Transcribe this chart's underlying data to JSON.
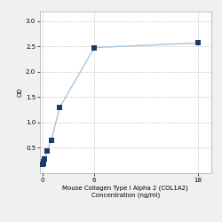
{
  "x_values": [
    0,
    0.0625,
    0.125,
    0.25,
    0.5,
    1,
    2,
    6,
    18
  ],
  "y_values": [
    0.17,
    0.19,
    0.22,
    0.28,
    0.43,
    0.65,
    1.3,
    2.48,
    2.57
  ],
  "xlabel_line1": "Mouse Collagen Type I Alpha 2 (COL1A2)",
  "xlabel_line2": "Concentration (ng/ml)",
  "ylabel": "OD",
  "xlim": [
    -0.3,
    19.5
  ],
  "ylim": [
    0.0,
    3.2
  ],
  "yticks": [
    0.5,
    1.0,
    1.5,
    2.0,
    2.5,
    3.0
  ],
  "xticks": [
    0,
    6,
    18
  ],
  "line_color": "#aac4d8",
  "marker_color": "#1a3a6b",
  "marker_size": 4,
  "line_width": 1.0,
  "grid_color": "#cccccc",
  "background_color": "#f0f0f0",
  "plot_bg_color": "#ffffff",
  "label_fontsize": 5.0,
  "tick_fontsize": 5.0
}
